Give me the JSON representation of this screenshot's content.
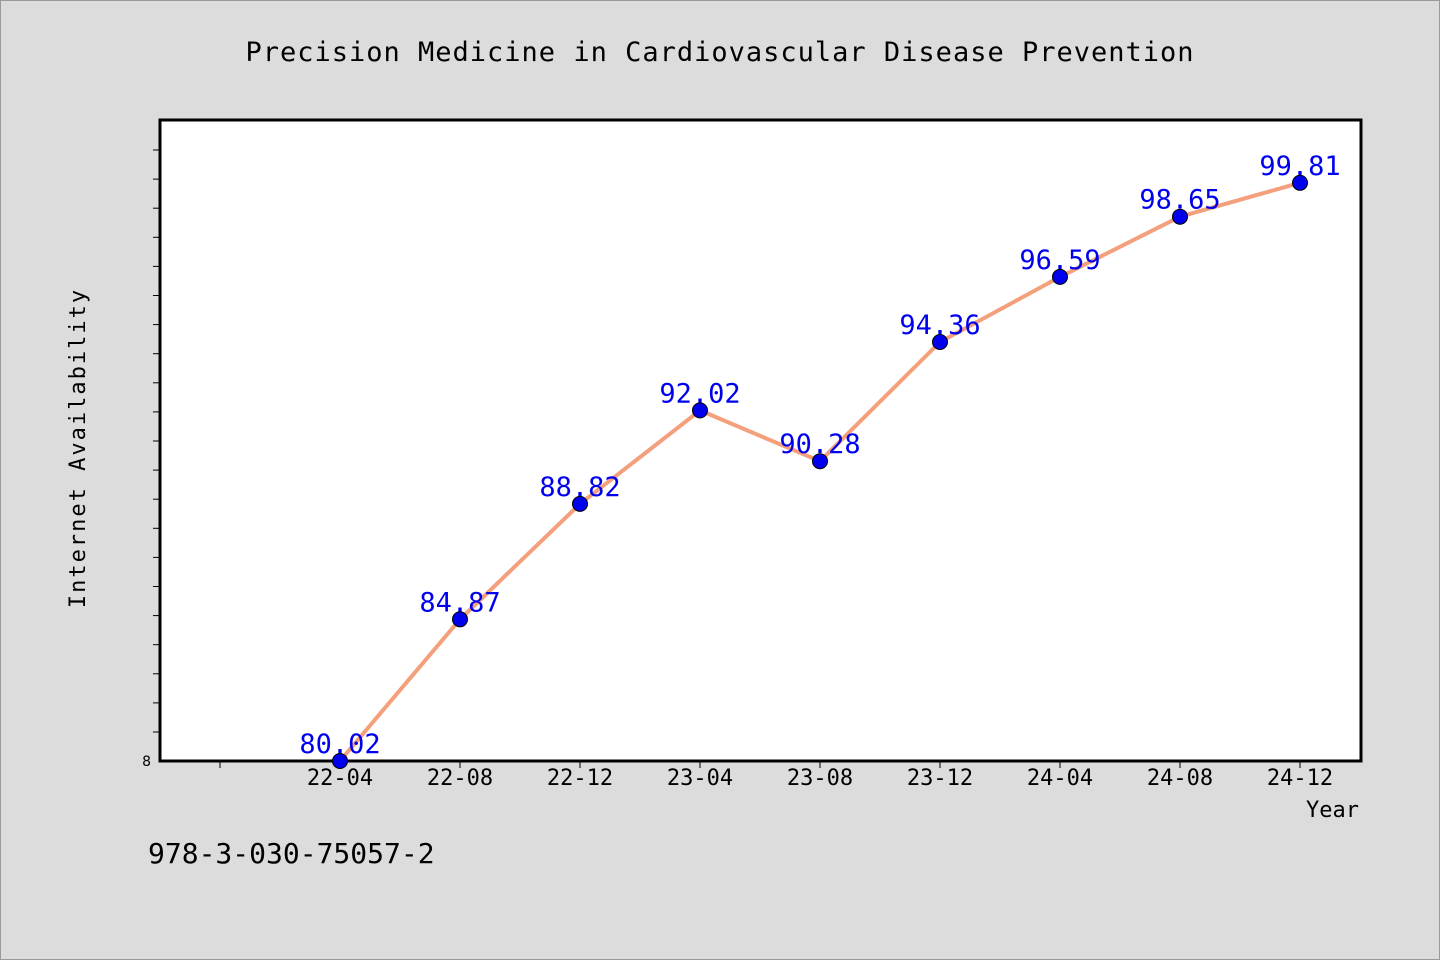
{
  "chart_data": {
    "type": "line",
    "title": "Precision Medicine in Cardiovascular Disease Prevention",
    "xlabel": "Year",
    "ylabel": "Internet Availability",
    "categories": [
      "22-04",
      "22-08",
      "22-12",
      "23-04",
      "23-08",
      "23-12",
      "24-04",
      "24-08",
      "24-12"
    ],
    "series": [
      {
        "values": [
          80.02,
          84.87,
          88.82,
          92.02,
          90.28,
          94.36,
          96.59,
          98.65,
          99.81
        ],
        "labels": [
          "80.02",
          "84.87",
          "88.82",
          "92.02",
          "90.28",
          "94.36",
          "96.59",
          "98.65",
          "99.81"
        ]
      }
    ],
    "y_tick_labels": [
      "8"
    ],
    "ylim": [
      80.02,
      101.96
    ],
    "grid": false,
    "colors": {
      "line": "#f4a07c",
      "marker": "#0000ee",
      "data_label": "#0000ee",
      "plot_background": "#ffffff",
      "page_background": "#dcdcdc"
    }
  },
  "footer": {
    "isbn": "978-3-030-75057-2"
  }
}
